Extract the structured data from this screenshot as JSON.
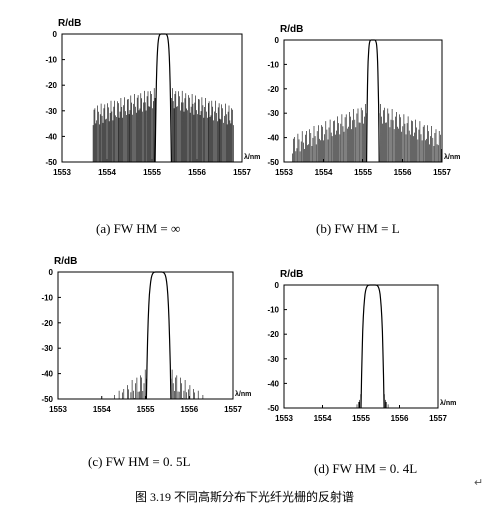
{
  "figure_caption": "图 3.19   不同高斯分布下光纤光栅的反射谱",
  "paragraph_mark": "↵",
  "chart_data": [
    {
      "type": "line",
      "caption": "(a) FW HM =  ∞",
      "ylabel": "R/dB",
      "xlabel": "λ/nm",
      "xlim": [
        1553,
        1557
      ],
      "ylim": [
        -50,
        0
      ],
      "xticks": [
        "1553",
        "1554",
        "1555",
        "1556",
        "1557"
      ],
      "yticks": [
        "0",
        "-10",
        "-20",
        "-30",
        "-40",
        "-50"
      ],
      "peak_center": 1555.25,
      "peak_halfwidth": 0.18,
      "sidelobe_level": -25,
      "sidelobe_extent": 1.4,
      "envelope_decay": "slow",
      "floor_level": -25
    },
    {
      "type": "line",
      "caption": "(b) FW HM = L",
      "ylabel": "R/dB",
      "xlabel": "λ/nm",
      "xlim": [
        1553,
        1557
      ],
      "ylim": [
        -50,
        0
      ],
      "xticks": [
        "1553",
        "1554",
        "1555",
        "1556",
        "1557"
      ],
      "yticks": [
        "0",
        "-10",
        "-20",
        "-30",
        "-40",
        "-50"
      ],
      "peak_center": 1555.25,
      "peak_halfwidth": 0.16,
      "sidelobe_level": -30,
      "sidelobe_extent": 1.9,
      "envelope_decay": "medium",
      "floor_level": -32
    },
    {
      "type": "line",
      "caption": "(c) FW HM =  0.  5L",
      "ylabel": "R/dB",
      "xlabel": "λ/nm",
      "xlim": [
        1553,
        1557
      ],
      "ylim": [
        -50,
        0
      ],
      "xticks": [
        "1553",
        "1554",
        "1555",
        "1556",
        "1557"
      ],
      "yticks": [
        "0",
        "-10",
        "-20",
        "-30",
        "-40",
        "-50"
      ],
      "peak_center": 1555.3,
      "peak_halfwidth": 0.28,
      "sidelobe_level": -42,
      "sidelobe_extent": 1.9,
      "envelope_decay": "fast",
      "floor_level": -45
    },
    {
      "type": "line",
      "caption": "(d) FW HM =  0.  4L",
      "ylabel": "R/dB",
      "xlabel": "λ/nm",
      "xlim": [
        1553,
        1557
      ],
      "ylim": [
        -50,
        0
      ],
      "xticks": [
        "1553",
        "1554",
        "1555",
        "1556",
        "1557"
      ],
      "yticks": [
        "0",
        "-10",
        "-20",
        "-30",
        "-40",
        "-50"
      ],
      "peak_center": 1555.3,
      "peak_halfwidth": 0.3,
      "sidelobe_level": -48,
      "sidelobe_extent": 0.6,
      "envelope_decay": "fast",
      "floor_level": -50
    }
  ]
}
